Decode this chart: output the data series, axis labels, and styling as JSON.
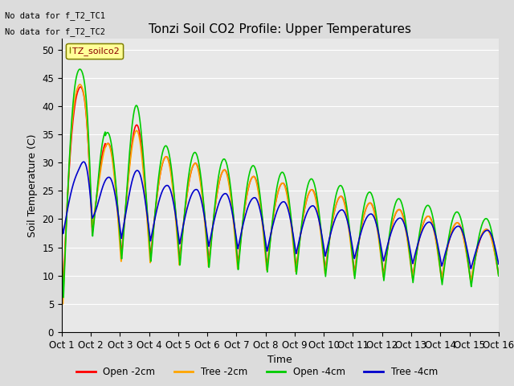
{
  "title": "Tonzi Soil CO2 Profile: Upper Temperatures",
  "ylabel": "Soil Temperature (C)",
  "xlabel": "Time",
  "top_note1": "No data for f_T2_TC1",
  "top_note2": "No data for f_T2_TC2",
  "legend_label": "TZ_soilco2",
  "ylim": [
    0,
    52
  ],
  "yticks": [
    0,
    5,
    10,
    15,
    20,
    25,
    30,
    35,
    40,
    45,
    50
  ],
  "xtick_labels": [
    "Oct 1",
    "Oct 2",
    "Oct 3",
    "Oct 4",
    "Oct 5",
    "Oct 6",
    "Oct 7",
    "Oct 8",
    "Oct 9",
    "Oct 10",
    "Oct 11",
    "Oct 12",
    "Oct 13",
    "Oct 14",
    "Oct 15",
    "Oct 16"
  ],
  "series": {
    "open_2cm": {
      "color": "#FF0000",
      "label": "Open -2cm",
      "lw": 1.2
    },
    "tree_2cm": {
      "color": "#FFA500",
      "label": "Tree -2cm",
      "lw": 1.2
    },
    "open_4cm": {
      "color": "#00CC00",
      "label": "Open -4cm",
      "lw": 1.2
    },
    "tree_4cm": {
      "color": "#0000CC",
      "label": "Tree -4cm",
      "lw": 1.2
    }
  },
  "bg_color": "#E8E8E8",
  "fig_bg_color": "#DCDCDC"
}
